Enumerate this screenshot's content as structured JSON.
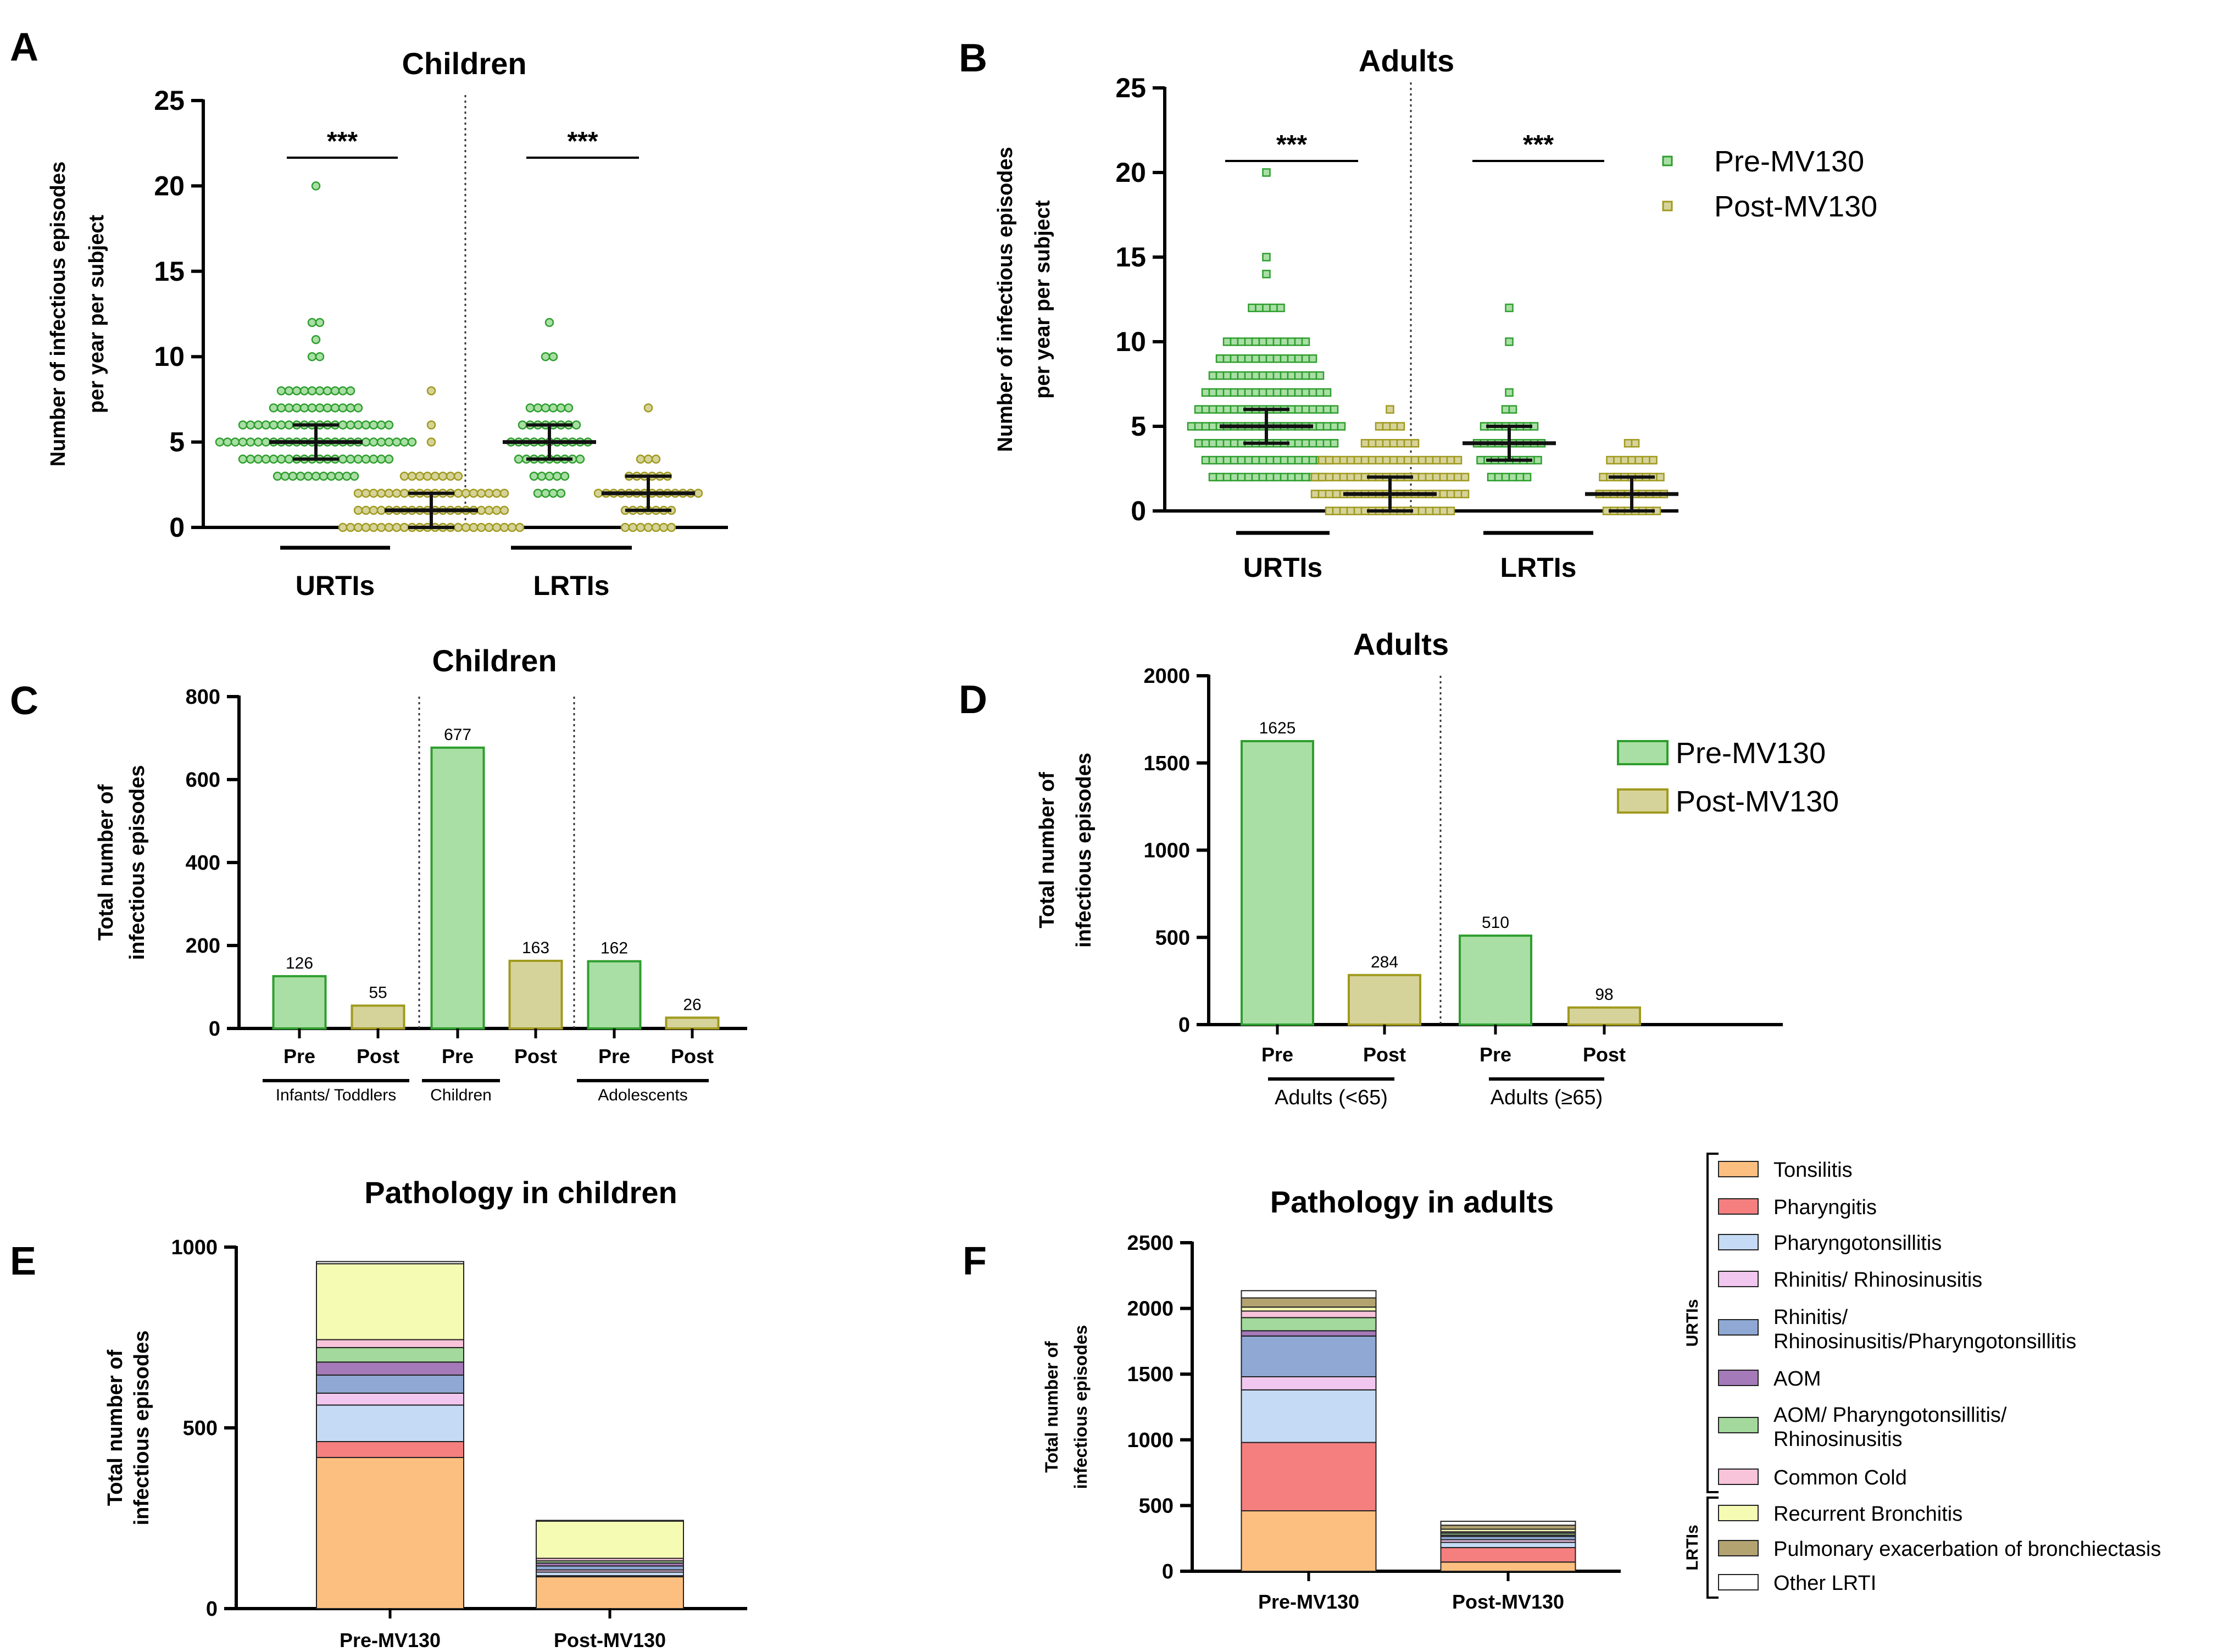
{
  "colors": {
    "pre_fill": "#a9dfa4",
    "pre_stroke": "#2e9e2e",
    "post_fill": "#d6d39a",
    "post_stroke": "#a09a1e",
    "axis": "#000000"
  },
  "chart_data": [
    {
      "id": "A",
      "type": "scatter",
      "panel_letter": "A",
      "title": "Children",
      "ylabel_lines": [
        "Number of infectious episodes",
        "per year per subject"
      ],
      "ylim": [
        0,
        25
      ],
      "yticks": [
        0,
        5,
        10,
        15,
        20,
        25
      ],
      "yticks_labels": [
        "0",
        "5",
        "10",
        "15",
        "20",
        "25"
      ],
      "marker": "circle",
      "groups": [
        {
          "label": "URTIs",
          "series": [
            {
              "name": "Pre-MV130",
              "median": 5,
              "q1": 4,
              "q3": 6,
              "counts": [
                [
                  "3",
                  11
                ],
                [
                  "4",
                  20
                ],
                [
                  "5",
                  26
                ],
                [
                  "6",
                  20
                ],
                [
                  "7",
                  12
                ],
                [
                  "8",
                  10
                ],
                [
                  "10",
                  2
                ],
                [
                  "11",
                  1
                ],
                [
                  "12",
                  2
                ],
                [
                  "20",
                  1
                ]
              ]
            },
            {
              "name": "Post-MV130",
              "median": 1,
              "q1": 0,
              "q3": 2,
              "counts": [
                [
                  "0",
                  24
                ],
                [
                  "1",
                  20
                ],
                [
                  "2",
                  20
                ],
                [
                  "3",
                  8
                ],
                [
                  "5",
                  1
                ],
                [
                  "6",
                  1
                ],
                [
                  "8",
                  1
                ]
              ]
            }
          ]
        },
        {
          "label": "LRTIs",
          "series": [
            {
              "name": "Pre-MV130",
              "median": 5,
              "q1": 4,
              "q3": 6,
              "counts": [
                [
                  "2",
                  4
                ],
                [
                  "3",
                  5
                ],
                [
                  "4",
                  9
                ],
                [
                  "5",
                  11
                ],
                [
                  "6",
                  8
                ],
                [
                  "7",
                  6
                ],
                [
                  "10",
                  2
                ],
                [
                  "12",
                  1
                ]
              ]
            },
            {
              "name": "Post-MV130",
              "median": 2,
              "q1": 1,
              "q3": 3,
              "counts": [
                [
                  "0",
                  7
                ],
                [
                  "1",
                  7
                ],
                [
                  "2",
                  14
                ],
                [
                  "3",
                  6
                ],
                [
                  "4",
                  3
                ],
                [
                  "7",
                  1
                ]
              ]
            }
          ]
        }
      ],
      "significance": [
        {
          "group": "URTIs",
          "text": "***"
        },
        {
          "group": "LRTIs",
          "text": "***"
        }
      ]
    },
    {
      "id": "B",
      "type": "scatter",
      "panel_letter": "B",
      "title": "Adults",
      "ylabel_lines": [
        "Number of infectious episodes",
        "per year per subject"
      ],
      "ylim": [
        0,
        25
      ],
      "yticks": [
        0,
        5,
        10,
        15,
        20,
        25
      ],
      "yticks_labels": [
        "0",
        "5",
        "10",
        "15",
        "20",
        "25"
      ],
      "marker": "square",
      "legend": [
        "Pre-MV130",
        "Post-MV130"
      ],
      "groups": [
        {
          "label": "URTIs",
          "series": [
            {
              "name": "Pre-MV130",
              "median": 5,
              "q1": 4,
              "q3": 6,
              "counts": [
                [
                  "2",
                  16
                ],
                [
                  "3",
                  18
                ],
                [
                  "4",
                  20
                ],
                [
                  "5",
                  22
                ],
                [
                  "6",
                  20
                ],
                [
                  "7",
                  18
                ],
                [
                  "8",
                  16
                ],
                [
                  "9",
                  14
                ],
                [
                  "10",
                  12
                ],
                [
                  "12",
                  5
                ],
                [
                  "14",
                  1
                ],
                [
                  "15",
                  1
                ],
                [
                  "20",
                  1
                ]
              ]
            },
            {
              "name": "Post-MV130",
              "median": 1,
              "q1": 0,
              "q3": 2,
              "counts": [
                [
                  "0",
                  18
                ],
                [
                  "1",
                  22
                ],
                [
                  "2",
                  22
                ],
                [
                  "3",
                  20
                ],
                [
                  "4",
                  8
                ],
                [
                  "5",
                  4
                ],
                [
                  "6",
                  1
                ]
              ]
            }
          ]
        },
        {
          "label": "LRTIs",
          "series": [
            {
              "name": "Pre-MV130",
              "median": 4,
              "q1": 3,
              "q3": 5,
              "counts": [
                [
                  "2",
                  6
                ],
                [
                  "3",
                  9
                ],
                [
                  "4",
                  10
                ],
                [
                  "5",
                  8
                ],
                [
                  "6",
                  2
                ],
                [
                  "7",
                  1
                ],
                [
                  "10",
                  1
                ],
                [
                  "12",
                  1
                ]
              ]
            },
            {
              "name": "Post-MV130",
              "median": 1,
              "q1": 0,
              "q3": 2,
              "counts": [
                [
                  "0",
                  8
                ],
                [
                  "1",
                  10
                ],
                [
                  "2",
                  9
                ],
                [
                  "3",
                  7
                ],
                [
                  "4",
                  2
                ]
              ]
            }
          ]
        }
      ],
      "significance": [
        {
          "group": "URTIs",
          "text": "***"
        },
        {
          "group": "LRTIs",
          "text": "***"
        }
      ]
    },
    {
      "id": "C",
      "type": "bar",
      "panel_letter": "C",
      "title": "Children",
      "ylabel_lines": [
        "Total number of",
        "infectious episodes"
      ],
      "ylim": [
        0,
        800
      ],
      "yticks": [
        0,
        200,
        400,
        600,
        800
      ],
      "yticks_labels": [
        "0",
        "200",
        "400",
        "600",
        "800"
      ],
      "categories": [
        "Pre",
        "Post",
        "Pre",
        "Post",
        "Pre",
        "Post"
      ],
      "values": [
        126,
        55,
        677,
        163,
        162,
        26
      ],
      "value_labels": [
        "126",
        "55",
        "677",
        "163",
        "162",
        "26"
      ],
      "group_labels": [
        "Infants/ Toddlers",
        "Children",
        "Adolescents"
      ]
    },
    {
      "id": "D",
      "type": "bar",
      "panel_letter": "D",
      "title": "Adults",
      "ylabel_lines": [
        "Total number of",
        "infectious episodes"
      ],
      "ylim": [
        0,
        2000
      ],
      "yticks": [
        0,
        500,
        1000,
        1500,
        2000
      ],
      "yticks_labels": [
        "0",
        "500",
        "1000",
        "1500",
        "2000"
      ],
      "categories": [
        "Pre",
        "Post",
        "Pre",
        "Post"
      ],
      "values": [
        1625,
        284,
        510,
        98
      ],
      "value_labels": [
        "1625",
        "284",
        "510",
        "98"
      ],
      "group_labels": [
        "Adults (<65)",
        "Adults (≥65)"
      ],
      "legend": [
        "Pre-MV130",
        "Post-MV130"
      ]
    },
    {
      "id": "E",
      "type": "bar",
      "stacked": true,
      "panel_letter": "E",
      "title": "Pathology in children",
      "ylabel_lines": [
        "Total number of",
        "infectious episodes"
      ],
      "ylim": [
        0,
        1000
      ],
      "yticks": [
        0,
        500,
        1000
      ],
      "yticks_labels": [
        "0",
        "500",
        "1000"
      ],
      "categories": [
        "Pre-MV130",
        "Post-MV130"
      ],
      "series": [
        {
          "name": "Tonsilitis",
          "values": [
            418,
            88
          ]
        },
        {
          "name": "Pharyngitis",
          "values": [
            44,
            3
          ]
        },
        {
          "name": "Pharyngotonsillitis",
          "values": [
            101,
            10
          ]
        },
        {
          "name": "Rhinitis/ Rhinosinusitis",
          "values": [
            33,
            6
          ]
        },
        {
          "name": "Rhinitis/ Rhinosinusitis/Pharyngotonsillitis",
          "values": [
            50,
            11
          ]
        },
        {
          "name": "AOM",
          "values": [
            36,
            8
          ]
        },
        {
          "name": "AOM/ Pharyngotonsillitis/ Rhinosinusitis",
          "values": [
            40,
            6
          ]
        },
        {
          "name": "Common Cold",
          "values": [
            22,
            7
          ]
        },
        {
          "name": "Recurrent Bronchitis",
          "values": [
            210,
            103
          ]
        },
        {
          "name": "Pulmonary exacerbation of bronchiectasis",
          "values": [
            0,
            0
          ]
        },
        {
          "name": "Other LRTI",
          "values": [
            6,
            2
          ]
        }
      ]
    },
    {
      "id": "F",
      "type": "bar",
      "stacked": true,
      "panel_letter": "F",
      "title": "Pathology in adults",
      "ylabel_lines": [
        "Total number of",
        "infectious episodes"
      ],
      "ylim": [
        0,
        2500
      ],
      "yticks": [
        0,
        500,
        1000,
        1500,
        2000,
        2500
      ],
      "yticks_labels": [
        "0",
        "500",
        "1000",
        "1500",
        "2000",
        "2500"
      ],
      "categories": [
        "Pre-MV130",
        "Post-MV130"
      ],
      "series": [
        {
          "name": "Tonsilitis",
          "values": [
            460,
            70
          ]
        },
        {
          "name": "Pharyngitis",
          "values": [
            520,
            110
          ]
        },
        {
          "name": "Pharyngotonsillitis",
          "values": [
            400,
            40
          ]
        },
        {
          "name": "Rhinitis/ Rhinosinusitis",
          "values": [
            100,
            20
          ]
        },
        {
          "name": "Rhinitis/ Rhinosinusitis/Pharyngotonsillitis",
          "values": [
            310,
            25
          ]
        },
        {
          "name": "AOM",
          "values": [
            40,
            10
          ]
        },
        {
          "name": "AOM/ Pharyngotonsillitis/ Rhinosinusitis",
          "values": [
            100,
            15
          ]
        },
        {
          "name": "Common Cold",
          "values": [
            50,
            10
          ]
        },
        {
          "name": "Recurrent Bronchitis",
          "values": [
            30,
            20
          ]
        },
        {
          "name": "Pulmonary exacerbation of bronchiectasis",
          "values": [
            70,
            30
          ]
        },
        {
          "name": "Other LRTI",
          "values": [
            55,
            30
          ]
        }
      ]
    }
  ],
  "pathology_legend": {
    "items": [
      {
        "name": "Tonsilitis",
        "color": "#fdbf7f"
      },
      {
        "name": "Pharyngitis",
        "color": "#f57f7f"
      },
      {
        "name": "Pharyngotonsillitis",
        "color": "#c5dbf5"
      },
      {
        "name": "Rhinitis/ Rhinosinusitis",
        "color": "#f2c7ef"
      },
      {
        "name": "Rhinitis/ Rhinosinusitis/Pharyngotonsillitis",
        "label_lines": [
          "Rhinitis/",
          "Rhinosinusitis/Pharyngotonsillitis"
        ],
        "color": "#8fa9d4"
      },
      {
        "name": "AOM",
        "color": "#a57ab9"
      },
      {
        "name": "AOM/ Pharyngotonsillitis/ Rhinosinusitis",
        "label_lines": [
          "AOM/ Pharyngotonsillitis/",
          "Rhinosinusitis"
        ],
        "color": "#a3d99c"
      },
      {
        "name": "Common Cold",
        "color": "#f8c4da"
      },
      {
        "name": "Recurrent Bronchitis",
        "color": "#f6fbb4"
      },
      {
        "name": "Pulmonary exacerbation of bronchiectasis",
        "color": "#b3a371"
      },
      {
        "name": "Other LRTI",
        "color": "#ffffff"
      }
    ],
    "brackets": [
      {
        "label": "URTIs",
        "from": 0,
        "to": 7
      },
      {
        "label": "LRTIs",
        "from": 8,
        "to": 10
      }
    ]
  }
}
